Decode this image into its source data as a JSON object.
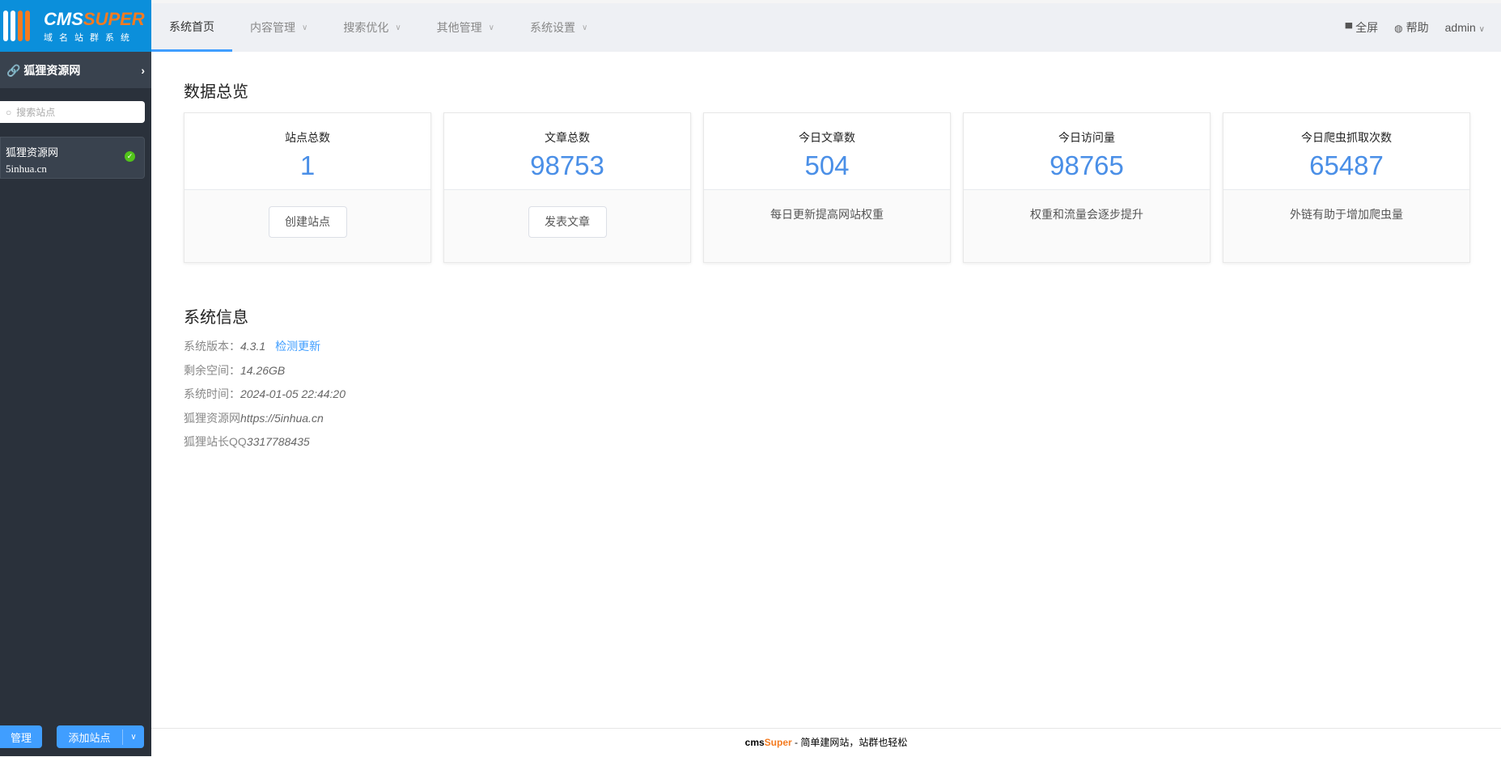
{
  "logo": {
    "brand_a": "CMS",
    "brand_b": "SUPER",
    "subtitle": "域名站群系统"
  },
  "sidebar": {
    "current_site": "狐狸资源网",
    "search_placeholder": "搜索站点",
    "sites": [
      {
        "name": "狐狸资源网",
        "domain": "5inhua.cn",
        "status": "active"
      }
    ],
    "manage_label": "管理",
    "add_label": "添加站点"
  },
  "nav": {
    "items": [
      {
        "label": "系统首页",
        "active": true
      },
      {
        "label": "内容管理"
      },
      {
        "label": "搜索优化"
      },
      {
        "label": "其他管理"
      },
      {
        "label": "系统设置"
      }
    ],
    "fullscreen": "全屏",
    "help": "帮助",
    "user": "admin"
  },
  "overview": {
    "title": "数据总览",
    "cards": [
      {
        "label": "站点总数",
        "value": "1",
        "button": "创建站点"
      },
      {
        "label": "文章总数",
        "value": "98753",
        "button": "发表文章"
      },
      {
        "label": "今日文章数",
        "value": "504",
        "hint": "每日更新提高网站权重"
      },
      {
        "label": "今日访问量",
        "value": "98765",
        "hint": "权重和流量会逐步提升"
      },
      {
        "label": "今日爬虫抓取次数",
        "value": "65487",
        "hint": "外链有助于增加爬虫量"
      }
    ]
  },
  "sysinfo": {
    "title": "系统信息",
    "version_label": "系统版本：",
    "version": "4.3.1",
    "check_update": "检测更新",
    "space_label": "剩余空间：",
    "space": "14.26GB",
    "time_label": "系统时间：",
    "time": "2024-01-05 22:44:20",
    "site_label": "狐狸资源网",
    "site_url": "https://5inhua.cn",
    "qq_label": "狐狸站长QQ",
    "qq": "3317788435"
  },
  "footer": {
    "a": "cms",
    "b": "Super",
    "text": " - 简单建网站，站群也轻松"
  },
  "colors": {
    "accent": "#409eff",
    "brand_orange": "#f47b20",
    "logo_bg": "#0b8fdb",
    "number": "#4a8fe7"
  }
}
